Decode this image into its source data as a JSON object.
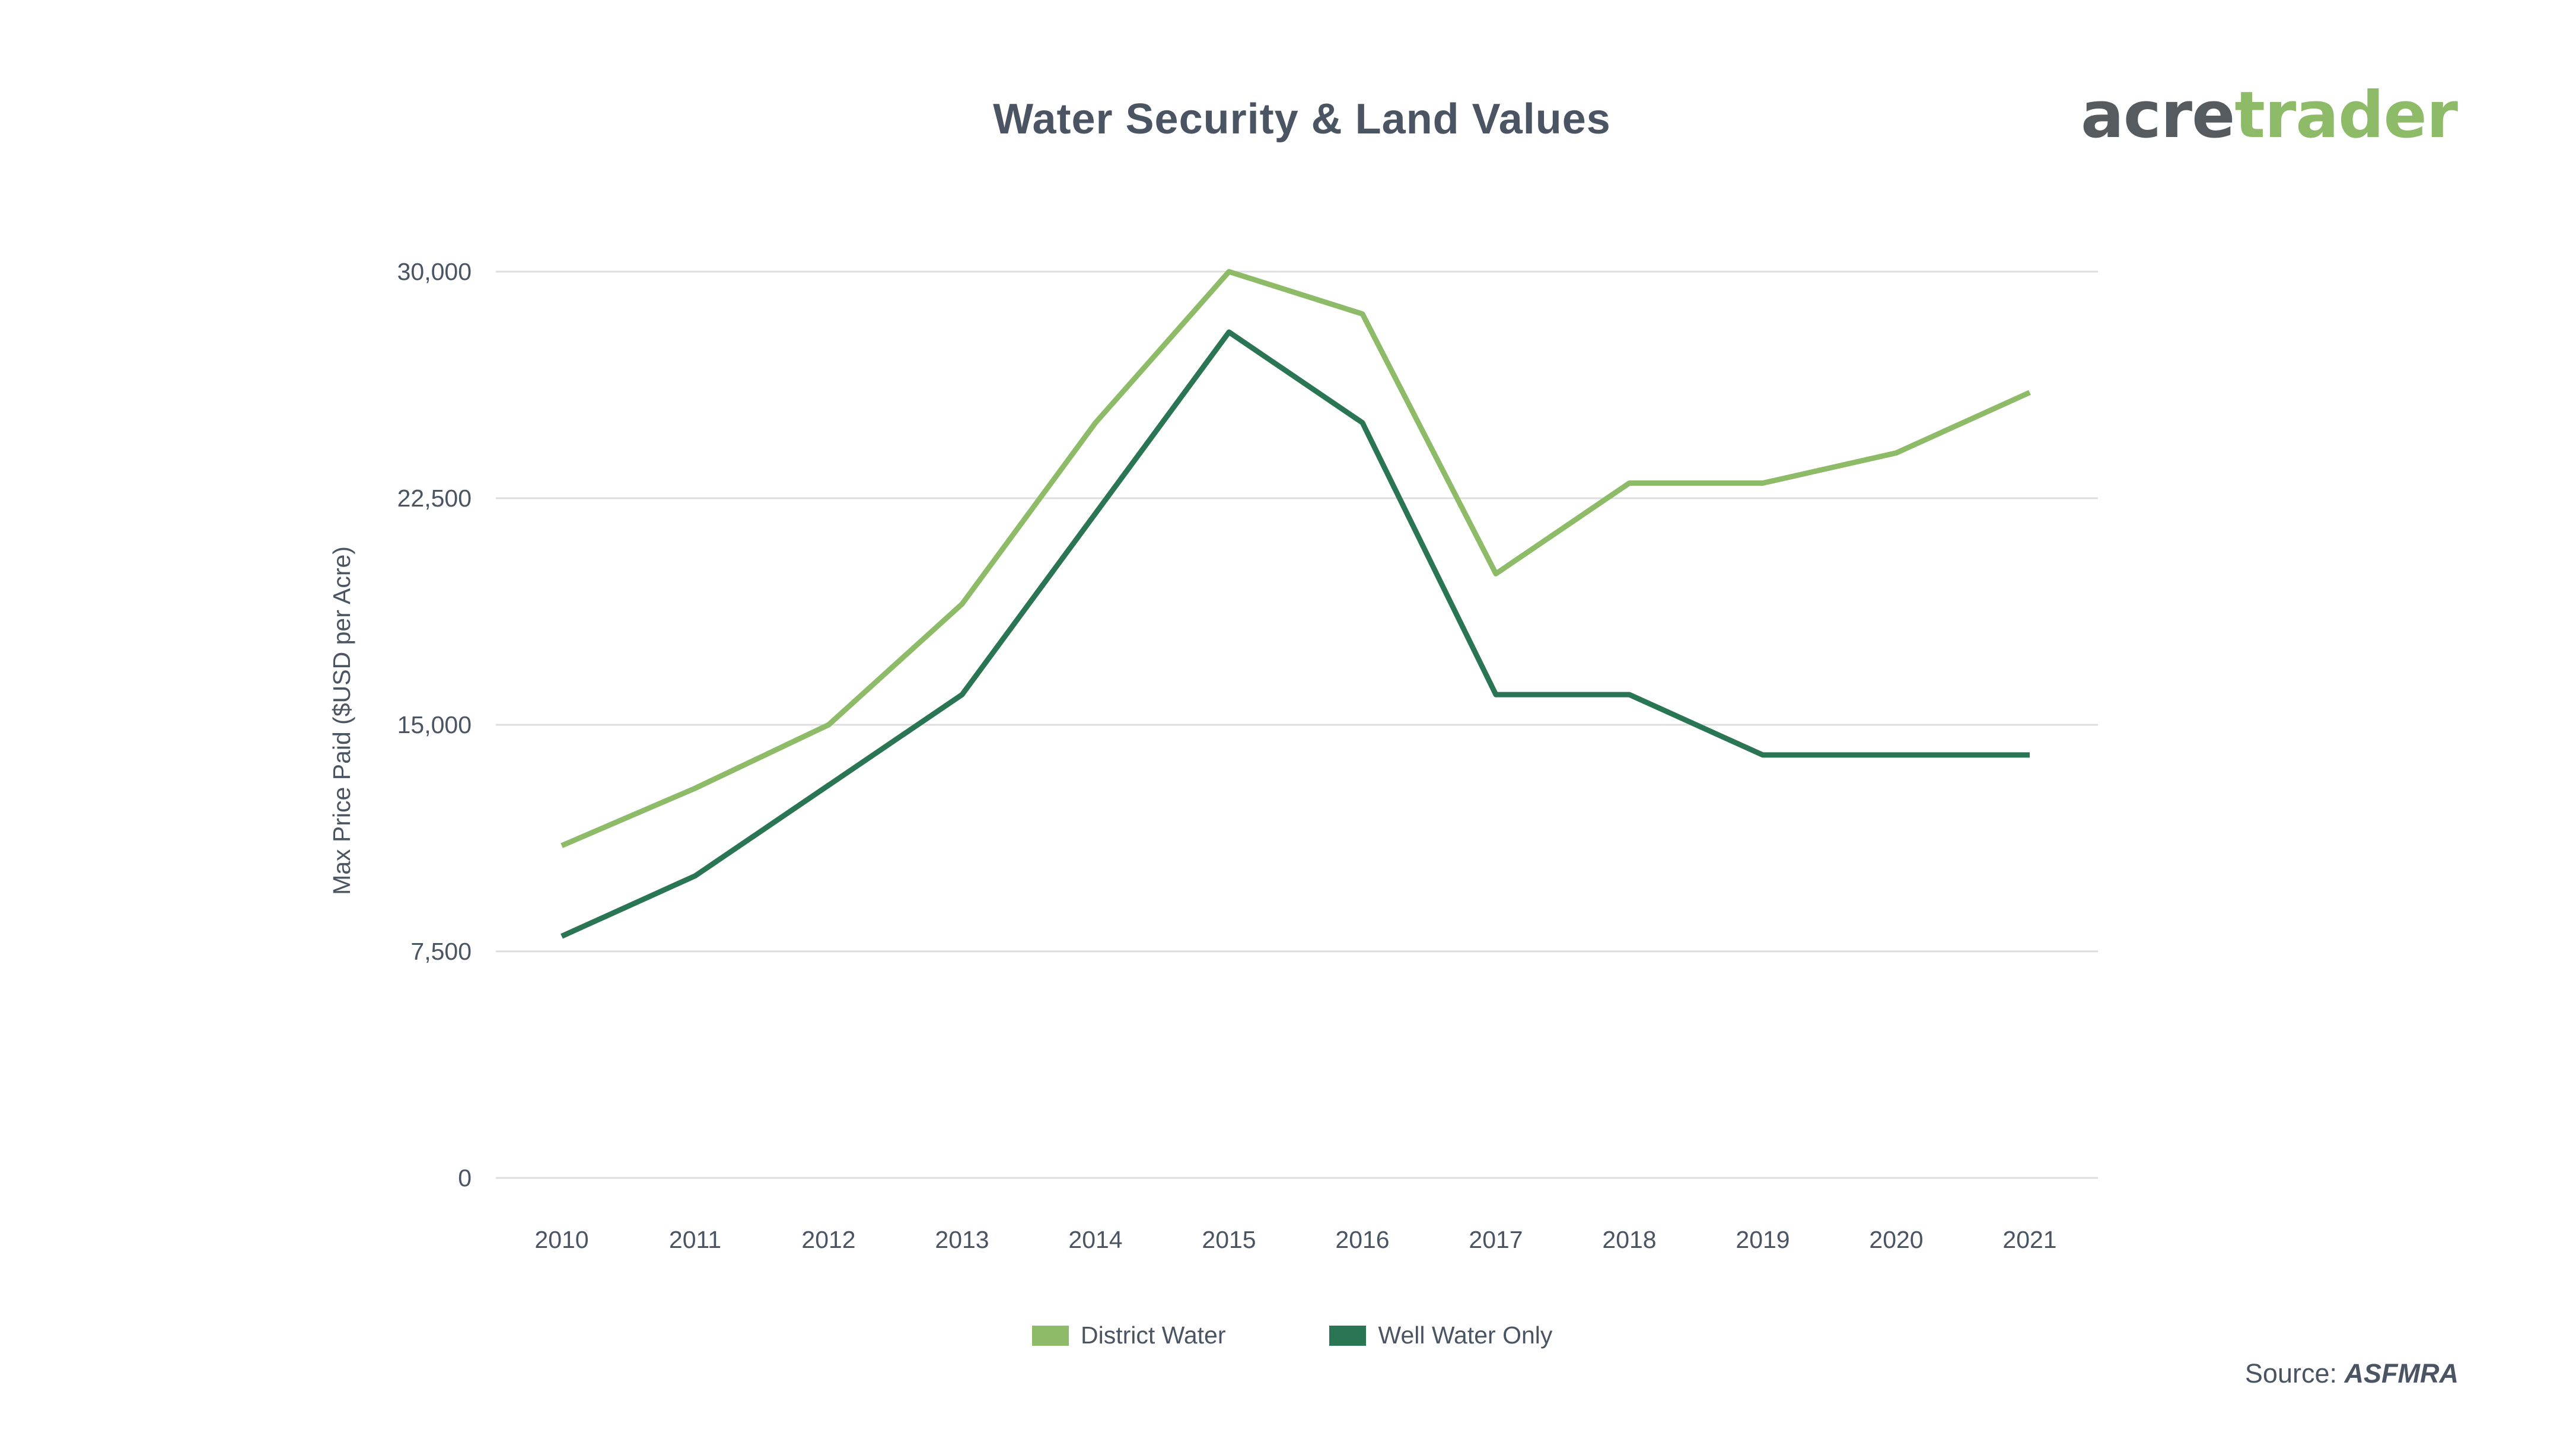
{
  "logo": {
    "part1": "acre",
    "part2": "trader"
  },
  "source": {
    "label": "Source:",
    "name": "ASFMRA"
  },
  "colors": {
    "district": "#8dbb67",
    "well": "#2a7553",
    "grid": "#dddddd",
    "text": "#4a5462"
  },
  "chart_data": {
    "type": "line",
    "title": "Water Security & Land Values",
    "xlabel": "",
    "ylabel": "Max Price Paid ($USD per Acre)",
    "x": [
      "2010",
      "2011",
      "2012",
      "2013",
      "2014",
      "2015",
      "2016",
      "2017",
      "2018",
      "2019",
      "2020",
      "2021"
    ],
    "ylim": [
      0,
      30000
    ],
    "yticks": [
      "0",
      "7,500",
      "15,000",
      "22,500",
      "30,000"
    ],
    "ytick_values": [
      0,
      7500,
      15000,
      22500,
      30000
    ],
    "grid": true,
    "legend_position": "bottom",
    "series": [
      {
        "name": "District Water",
        "color": "#8dbb67",
        "values": [
          11000,
          12900,
          15000,
          19000,
          25000,
          30000,
          28600,
          20000,
          23000,
          23000,
          24000,
          26000
        ]
      },
      {
        "name": "Well Water Only",
        "color": "#2a7553",
        "values": [
          8000,
          10000,
          13000,
          16000,
          22000,
          28000,
          25000,
          16000,
          16000,
          14000,
          14000,
          14000
        ]
      }
    ]
  }
}
